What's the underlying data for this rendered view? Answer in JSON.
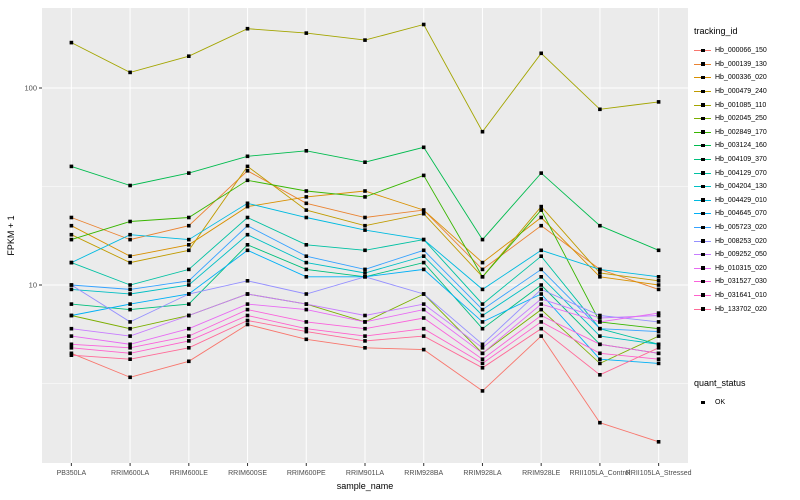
{
  "figure": {
    "panel_bg": "#EBEBEB",
    "grid_major_color": "#FFFFFF",
    "grid_minor_color": "#F5F5F5",
    "axis_text_color": "#4D4D4D",
    "tick_mark_color": "#333333",
    "point_color": "#000000"
  },
  "legend": {
    "tracking_title": "tracking_id",
    "quant_title": "quant_status",
    "quant_items": [
      {
        "label": "OK"
      }
    ]
  },
  "chart_data": {
    "type": "line",
    "title": "",
    "xlabel": "sample_name",
    "ylabel": "FPKM + 1",
    "y_scale": "log10",
    "y_ticks": [
      10,
      100
    ],
    "y_minor_ticks": [
      3.162,
      31.62
    ],
    "ylim": [
      1.25,
      260
    ],
    "grid": true,
    "legend_position": "right",
    "point_shape": "filled-square-black (quant_status OK)",
    "categories": [
      "PB350LA",
      "RRIM600LA",
      "RRIM600LE",
      "RRIM600SE",
      "RRIM600PE",
      "RRIM901LA",
      "RRIM928BA",
      "RRIM928LA",
      "RRIM928LE",
      "RRII105LA_Control",
      "RRII105LA_Stressed"
    ],
    "series": [
      {
        "name": "Hb_000066_150",
        "color": "#F8766D",
        "values": [
          4.5,
          3.4,
          4.1,
          6.3,
          5.3,
          4.8,
          4.7,
          2.9,
          5.5,
          2.0,
          1.6
        ]
      },
      {
        "name": "Hb_000139_130",
        "color": "#EA8331",
        "values": [
          22,
          17,
          20,
          38,
          26,
          22,
          24,
          12,
          20,
          12,
          9.5
        ]
      },
      {
        "name": "Hb_000336_020",
        "color": "#D89000",
        "values": [
          20,
          14,
          16,
          25,
          28,
          30,
          24,
          13,
          22,
          11,
          10
        ]
      },
      {
        "name": "Hb_000479_240",
        "color": "#C09B00",
        "values": [
          18,
          13,
          15,
          40,
          24,
          20,
          23,
          11,
          25,
          11.5,
          10.5
        ]
      },
      {
        "name": "Hb_001085_110",
        "color": "#A3A500",
        "values": [
          170,
          120,
          145,
          200,
          190,
          175,
          210,
          60,
          150,
          78,
          85
        ]
      },
      {
        "name": "Hb_002045_250",
        "color": "#7CAE00",
        "values": [
          7,
          6,
          7,
          9,
          8,
          6.5,
          9,
          4.5,
          7.5,
          4,
          5.5
        ]
      },
      {
        "name": "Hb_002849_170",
        "color": "#39B600",
        "values": [
          17,
          21,
          22,
          34,
          30,
          28,
          36,
          11,
          24,
          6.5,
          6
        ]
      },
      {
        "name": "Hb_003124_160",
        "color": "#00BB4E",
        "values": [
          40,
          32,
          37,
          45,
          48,
          42,
          50,
          17,
          37,
          20,
          15
        ]
      },
      {
        "name": "Hb_004109_370",
        "color": "#00BF7D",
        "values": [
          8,
          7.5,
          8,
          16,
          12,
          11,
          13,
          6,
          10,
          5,
          4.5
        ]
      },
      {
        "name": "Hb_004129_070",
        "color": "#00C1A3",
        "values": [
          13,
          10,
          12,
          22,
          16,
          15,
          17,
          8,
          14,
          6,
          5
        ]
      },
      {
        "name": "Hb_004204_130",
        "color": "#00BFC4",
        "values": [
          9.5,
          9,
          10,
          18,
          13,
          11.5,
          14,
          7,
          11,
          5.5,
          5
        ]
      },
      {
        "name": "Hb_004429_010",
        "color": "#00BAE0",
        "values": [
          13,
          18,
          17,
          26,
          22,
          19,
          17,
          9.5,
          15,
          12,
          11
        ]
      },
      {
        "name": "Hb_004645_070",
        "color": "#00B0F6",
        "values": [
          7,
          8,
          9,
          15,
          11,
          11,
          12,
          6.5,
          9,
          4.2,
          4
        ]
      },
      {
        "name": "Hb_005723_020",
        "color": "#35A2FF",
        "values": [
          10,
          9.5,
          10.5,
          20,
          14,
          12,
          15,
          7.5,
          12,
          6,
          5.8
        ]
      },
      {
        "name": "Hb_008253_020",
        "color": "#9590FF",
        "values": [
          10,
          6.5,
          9,
          10.5,
          9,
          11,
          9,
          5,
          9.5,
          7,
          6.5
        ]
      },
      {
        "name": "Hb_009252_050",
        "color": "#C77CFF",
        "values": [
          6,
          5.5,
          7,
          9,
          8,
          7,
          8,
          4.8,
          8.5,
          6.8,
          7
        ]
      },
      {
        "name": "Hb_010315_020",
        "color": "#E76BF3",
        "values": [
          5.5,
          5,
          6,
          8,
          7.5,
          6.5,
          7.5,
          4.5,
          8,
          6.5,
          7.2
        ]
      },
      {
        "name": "Hb_031527_030",
        "color": "#FA62DB",
        "values": [
          5,
          4.8,
          5.5,
          7.5,
          6.5,
          6,
          6.8,
          4.2,
          7,
          5,
          4.5
        ]
      },
      {
        "name": "Hb_031641_010",
        "color": "#FF61CC",
        "values": [
          4.8,
          4.5,
          5.2,
          7,
          6,
          5.5,
          6,
          4,
          6.5,
          4.5,
          4.2
        ]
      },
      {
        "name": "Hb_133702_020",
        "color": "#FF6A98",
        "values": [
          4.4,
          4.2,
          4.8,
          6.6,
          5.8,
          5.2,
          5.5,
          3.8,
          6,
          3.5,
          4.8
        ]
      }
    ]
  }
}
